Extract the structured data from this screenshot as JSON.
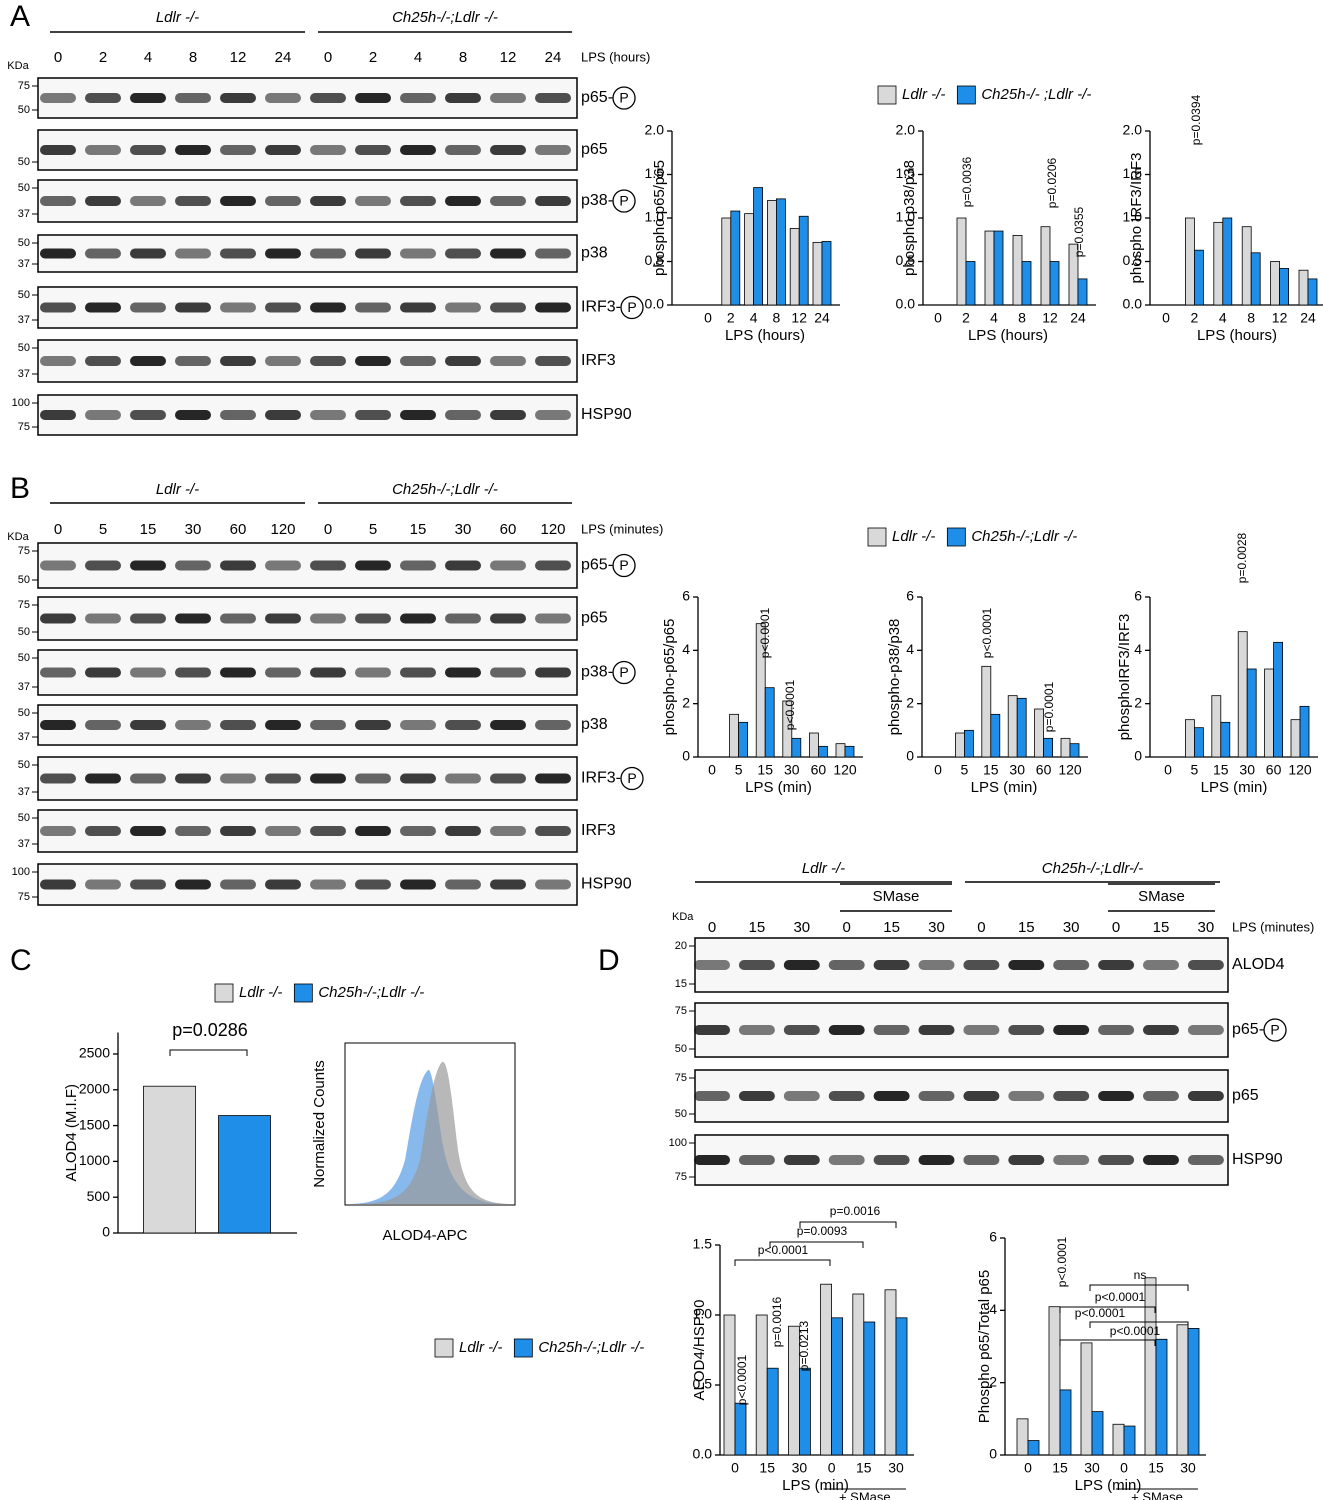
{
  "panels": [
    "A",
    "B",
    "C",
    "D"
  ],
  "blots": [
    {
      "groups": [
        "Ldlr -/-",
        "Ch25h-/-;Ldlr -/-"
      ],
      "lanes": [
        "0",
        "2",
        "4",
        "8",
        "12",
        "24",
        "0",
        "2",
        "4",
        "8",
        "12",
        "24"
      ],
      "lane_unit": "LPS (hours)",
      "size_unit": "KDa",
      "phospho_symbol": "P",
      "rows": [
        {
          "label": "p65-",
          "phospho": true,
          "markers": [
            "75",
            "50"
          ]
        },
        {
          "label": "p65",
          "markers": [
            "50"
          ]
        },
        {
          "label": "p38-",
          "phospho": true,
          "markers": [
            "50",
            "37"
          ]
        },
        {
          "label": "p38",
          "markers": [
            "50",
            "37"
          ]
        },
        {
          "label": "IRF3-",
          "phospho": true,
          "markers": [
            "50",
            "37"
          ]
        },
        {
          "label": "IRF3",
          "markers": [
            "50",
            "37"
          ]
        },
        {
          "label": "HSP90",
          "markers": [
            "100",
            "75"
          ]
        }
      ]
    },
    {
      "groups": [
        "Ldlr -/-",
        "Ch25h-/-;Ldlr -/-"
      ],
      "lanes": [
        "0",
        "5",
        "15",
        "30",
        "60",
        "120",
        "0",
        "5",
        "15",
        "30",
        "60",
        "120"
      ],
      "lane_unit": "LPS (minutes)",
      "size_unit": "KDa",
      "phospho_symbol": "P",
      "rows": [
        {
          "label": "p65-",
          "phospho": true,
          "markers": [
            "75",
            "50"
          ]
        },
        {
          "label": "p65",
          "markers": [
            "75",
            "50"
          ]
        },
        {
          "label": "p38-",
          "phospho": true,
          "markers": [
            "50",
            "37"
          ]
        },
        {
          "label": "p38",
          "markers": [
            "50",
            "37"
          ]
        },
        {
          "label": "IRF3-",
          "phospho": true,
          "markers": [
            "50",
            "37"
          ]
        },
        {
          "label": "IRF3",
          "markers": [
            "50",
            "37"
          ]
        },
        {
          "label": "HSP90",
          "markers": [
            "100",
            "75"
          ]
        }
      ]
    },
    {
      "groups": [
        "Ldlr -/-",
        "Ch25h-/-;Ldlr-/-"
      ],
      "subgroups": [
        "SMase",
        "SMase"
      ],
      "lanes": [
        "0",
        "15",
        "30",
        "0",
        "15",
        "30",
        "0",
        "15",
        "30",
        "0",
        "15",
        "30"
      ],
      "lane_unit": "LPS (minutes)",
      "size_unit": "KDa",
      "phospho_symbol": "P",
      "rows": [
        {
          "label": "ALOD4",
          "markers": [
            "20",
            "15"
          ]
        },
        {
          "label": "p65-",
          "phospho": true,
          "markers": [
            "75",
            "50"
          ]
        },
        {
          "label": "p65",
          "markers": [
            "75",
            "50"
          ]
        },
        {
          "label": "HSP90",
          "markers": [
            "100",
            "75"
          ]
        }
      ]
    }
  ],
  "flow": {
    "y_label": "Normalized Counts",
    "x_label": "ALOD4-APC"
  },
  "chart_data": [
    {
      "type": "bar",
      "y_label": "phospho p65/p65",
      "x_label": "LPS (hours)",
      "categories": [
        "0",
        "2",
        "4",
        "8",
        "12",
        "24"
      ],
      "legend": "top",
      "series": [
        {
          "name": "Ldlr -/-",
          "color": "#d9d9d9",
          "values": [
            0,
            1.0,
            1.05,
            1.2,
            0.88,
            0.72
          ]
        },
        {
          "name": "Ch25h-/- ;Ldlr -/-",
          "color": "#1e8ee8",
          "values": [
            0,
            1.08,
            1.35,
            1.22,
            1.02,
            0.73
          ]
        }
      ],
      "ylim": [
        0,
        2
      ],
      "yticks": [
        {
          "value": 0,
          "label": "0.0"
        },
        0.5,
        {
          "value": 1,
          "label": "1.0"
        },
        1.5,
        {
          "value": 2,
          "label": "2.0"
        }
      ],
      "annotations": []
    },
    {
      "type": "bar",
      "y_label": "phospho p38/p38",
      "x_label": "LPS (hours)",
      "categories": [
        "0",
        "2",
        "4",
        "8",
        "12",
        "24"
      ],
      "series": [
        {
          "color": "#d9d9d9",
          "values": [
            0,
            1.0,
            0.85,
            0.8,
            0.9,
            0.7
          ]
        },
        {
          "color": "#1e8ee8",
          "values": [
            0,
            0.5,
            0.85,
            0.5,
            0.5,
            0.3
          ]
        }
      ],
      "ylim": [
        0,
        2
      ],
      "yticks": [
        {
          "value": 0,
          "label": "0.0"
        },
        0.5,
        {
          "value": 1,
          "label": "1.0"
        },
        1.5,
        {
          "value": 2,
          "label": "2.0"
        }
      ],
      "annotations": [
        "p=0.0036",
        "p=0.0206",
        "p=0.0355"
      ]
    },
    {
      "type": "bar",
      "y_label": "phospho IRF3/IRF3",
      "x_label": "LPS (hours)",
      "categories": [
        "0",
        "2",
        "4",
        "8",
        "12",
        "24"
      ],
      "series": [
        {
          "color": "#d9d9d9",
          "values": [
            0,
            1.0,
            0.95,
            0.9,
            0.5,
            0.4
          ]
        },
        {
          "color": "#1e8ee8",
          "values": [
            0,
            0.63,
            1.0,
            0.6,
            0.42,
            0.3
          ]
        }
      ],
      "ylim": [
        0,
        2
      ],
      "yticks": [
        {
          "value": 0,
          "label": "0.0"
        },
        0.5,
        {
          "value": 1,
          "label": "1.0"
        },
        1.5,
        {
          "value": 2,
          "label": "2.0"
        }
      ],
      "annotations": [
        "p=0.0394"
      ]
    },
    {
      "type": "bar",
      "y_label": "phospho-p65/p65",
      "x_label": "LPS (min)",
      "categories": [
        "0",
        "5",
        "15",
        "30",
        "60",
        "120"
      ],
      "legend": "top",
      "series": [
        {
          "name": "Ldlr -/-",
          "color": "#d9d9d9",
          "values": [
            0,
            1.6,
            5.0,
            2.1,
            0.9,
            0.5
          ]
        },
        {
          "name": "Ch25h-/-;Ldlr -/-",
          "color": "#1e8ee8",
          "values": [
            0,
            1.3,
            2.6,
            0.7,
            0.4,
            0.4
          ]
        }
      ],
      "ylim": [
        0,
        6
      ],
      "yticks": [
        0,
        2,
        4,
        6
      ],
      "annotations": [
        "p<0.0001",
        "p<0.0001"
      ]
    },
    {
      "type": "bar",
      "y_label": "phospho-p38/p38",
      "x_label": "LPS (min)",
      "categories": [
        "0",
        "5",
        "15",
        "30",
        "60",
        "120"
      ],
      "series": [
        {
          "color": "#d9d9d9",
          "values": [
            0,
            0.9,
            3.4,
            2.3,
            1.8,
            0.7
          ]
        },
        {
          "color": "#1e8ee8",
          "values": [
            0,
            1.0,
            1.6,
            2.2,
            0.7,
            0.5
          ]
        }
      ],
      "ylim": [
        0,
        6
      ],
      "yticks": [
        0,
        2,
        4,
        6
      ],
      "annotations": [
        "p<0.0001",
        "p=0.0001"
      ]
    },
    {
      "type": "bar",
      "y_label": "phosphoIRF3/IRF3",
      "x_label": "LPS (min)",
      "categories": [
        "0",
        "5",
        "15",
        "30",
        "60",
        "120"
      ],
      "series": [
        {
          "color": "#d9d9d9",
          "values": [
            0,
            1.4,
            2.3,
            4.7,
            3.3,
            1.4
          ]
        },
        {
          "color": "#1e8ee8",
          "values": [
            0,
            1.1,
            1.3,
            3.3,
            4.3,
            1.9
          ]
        }
      ],
      "ylim": [
        0,
        6
      ],
      "yticks": [
        0,
        2,
        4,
        6
      ],
      "annotations": [
        "p=0.0028"
      ]
    },
    {
      "type": "bar",
      "y_label": "ALOD4 (M.I.F)",
      "categories": [
        null
      ],
      "legend": "top",
      "series": [
        {
          "name": "Ldlr -/-",
          "color": "#d9d9d9",
          "values": [
            2050
          ]
        },
        {
          "name": "Ch25h-/-;Ldlr -/-",
          "color": "#1e8ee8",
          "values": [
            1640
          ]
        }
      ],
      "ylim": [
        0,
        2800
      ],
      "yticks": [
        0,
        500,
        1000,
        1500,
        2000,
        2500
      ],
      "annotations": [
        "p=0.0286"
      ]
    },
    {
      "type": "bar",
      "y_label": "ALOD4/HSP90",
      "x_label": "LPS (min)",
      "sublabel": "+ SMase",
      "categories": [
        "0",
        "15",
        "30",
        "0",
        "15",
        "30"
      ],
      "legend": "left",
      "series": [
        {
          "name": "Ldlr -/-",
          "color": "#d9d9d9",
          "values": [
            1.0,
            1.0,
            0.92,
            1.22,
            1.15,
            1.18
          ]
        },
        {
          "name": "Ch25h-/-;Ldlr -/-",
          "color": "#1e8ee8",
          "values": [
            0.37,
            0.62,
            0.62,
            0.98,
            0.95,
            0.98
          ]
        }
      ],
      "ylim": [
        0,
        1.5
      ],
      "yticks": [
        {
          "value": 0,
          "label": "0.0"
        },
        0.5,
        {
          "value": 1,
          "label": "1.0"
        },
        1.5
      ],
      "annotations": [
        "p<0.0001",
        "p=0.0016",
        "p=0.0213",
        "p<0.0001",
        "p=0.0093",
        "p=0.0016"
      ]
    },
    {
      "type": "bar",
      "y_label": "Phospho p65/Total p65",
      "x_label": "LPS (min)",
      "sublabel": "+ SMase",
      "categories": [
        "0",
        "15",
        "30",
        "0",
        "15",
        "30"
      ],
      "series": [
        {
          "color": "#d9d9d9",
          "values": [
            1.0,
            4.1,
            3.1,
            0.85,
            4.9,
            3.6
          ]
        },
        {
          "color": "#1e8ee8",
          "values": [
            0.4,
            1.8,
            1.2,
            0.8,
            3.2,
            3.5
          ]
        }
      ],
      "ylim": [
        0,
        6
      ],
      "yticks": [
        0,
        2,
        4,
        6
      ],
      "annotations": [
        "p<0.0001",
        "ns",
        "p<0.0001",
        "p<0.0001",
        "p<0.0001"
      ]
    }
  ]
}
